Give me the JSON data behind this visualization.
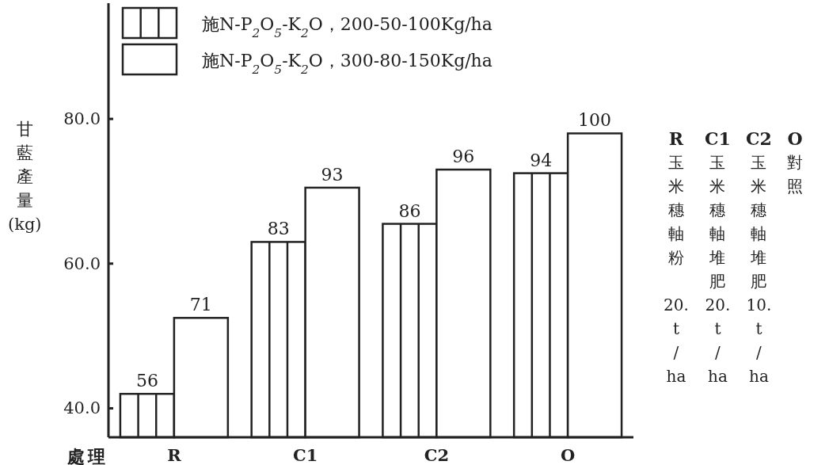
{
  "chart_data": {
    "type": "bar",
    "ylabel": "甘藍產量(kg)",
    "xlabel": "處理",
    "categories": [
      "R",
      "C1",
      "C2",
      "O"
    ],
    "series": [
      {
        "name": "施N-P$_{2}$O$_{5}$-K$_{2}$O，200-50-100Kg/ha",
        "color": "#ffffff",
        "values": [
          42,
          63,
          65.5,
          72.5
        ]
      },
      {
        "name": "施N-P$_{2}$O$_{5}$-K$_{2}$O，300-80-150Kg/ha",
        "color": "#ffffff",
        "values": [
          52.5,
          70.5,
          73,
          78
        ]
      }
    ],
    "ylim": [
      36,
      96
    ],
    "yticks": [
      {
        "value": 40,
        "label": "40.0"
      },
      {
        "value": 60,
        "label": "60.0"
      },
      {
        "value": 80,
        "label": "80.0"
      }
    ],
    "grid": false,
    "legend": "top left",
    "annotations": [
      "R 玉米穗軸粉 20. t / ha",
      "C1 玉米穗軸堆肥 20. t / ha",
      "C2 玉米穗軸堆肥 10. t / ha",
      "O 對照",
      {
        "text": "56",
        "x": "R",
        "y": 42
      },
      {
        "text": "71",
        "x": "R",
        "y": 52.5
      },
      {
        "text": "83",
        "x": "C1",
        "y": 63
      },
      {
        "text": "93",
        "x": "C1",
        "y": 70.5
      },
      {
        "text": "86",
        "x": "C2",
        "y": 65.5
      },
      {
        "text": "96",
        "x": "C2",
        "y": 73
      },
      {
        "text": "94",
        "x": "O",
        "y": 72.5
      },
      {
        "text": "100",
        "x": "O",
        "y": 78
      }
    ]
  }
}
